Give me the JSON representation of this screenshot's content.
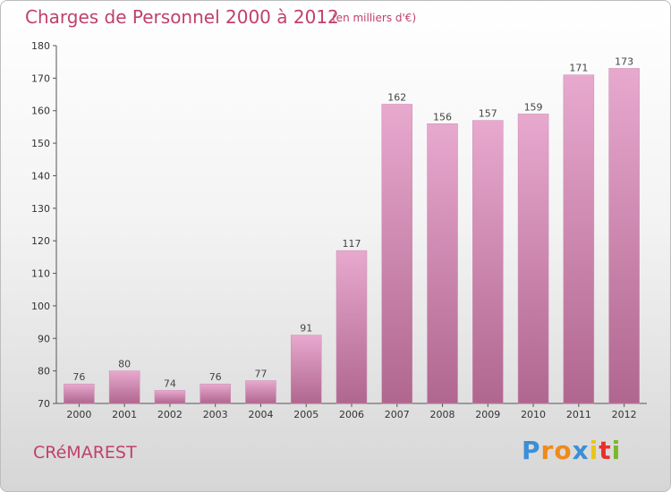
{
  "title": "Charges de Personnel 2000 à 2012",
  "subtitle": "(en milliers d'€)",
  "commune": "CRéMAREST",
  "logo": {
    "letters": [
      "P",
      "r",
      "o",
      "x",
      "i",
      "t",
      "i"
    ],
    "colors": [
      "#3a8fd6",
      "#f08a1a",
      "#f08a1a",
      "#3a8fd6",
      "#e8c51a",
      "#e8302a",
      "#7ab82a"
    ]
  },
  "colors": {
    "bar_top": "#e8a9cf",
    "bar_bottom": "#b0668f",
    "accent": "#c0406e"
  },
  "chart_data": {
    "type": "bar",
    "categories": [
      "2000",
      "2001",
      "2002",
      "2003",
      "2004",
      "2005",
      "2006",
      "2007",
      "2008",
      "2009",
      "2010",
      "2011",
      "2012"
    ],
    "values": [
      76,
      80,
      74,
      76,
      77,
      91,
      117,
      162,
      156,
      157,
      159,
      171,
      173
    ],
    "ylim": [
      70,
      180
    ],
    "yticks": [
      70,
      80,
      90,
      100,
      110,
      120,
      130,
      140,
      150,
      160,
      170,
      180
    ],
    "grid": false
  }
}
